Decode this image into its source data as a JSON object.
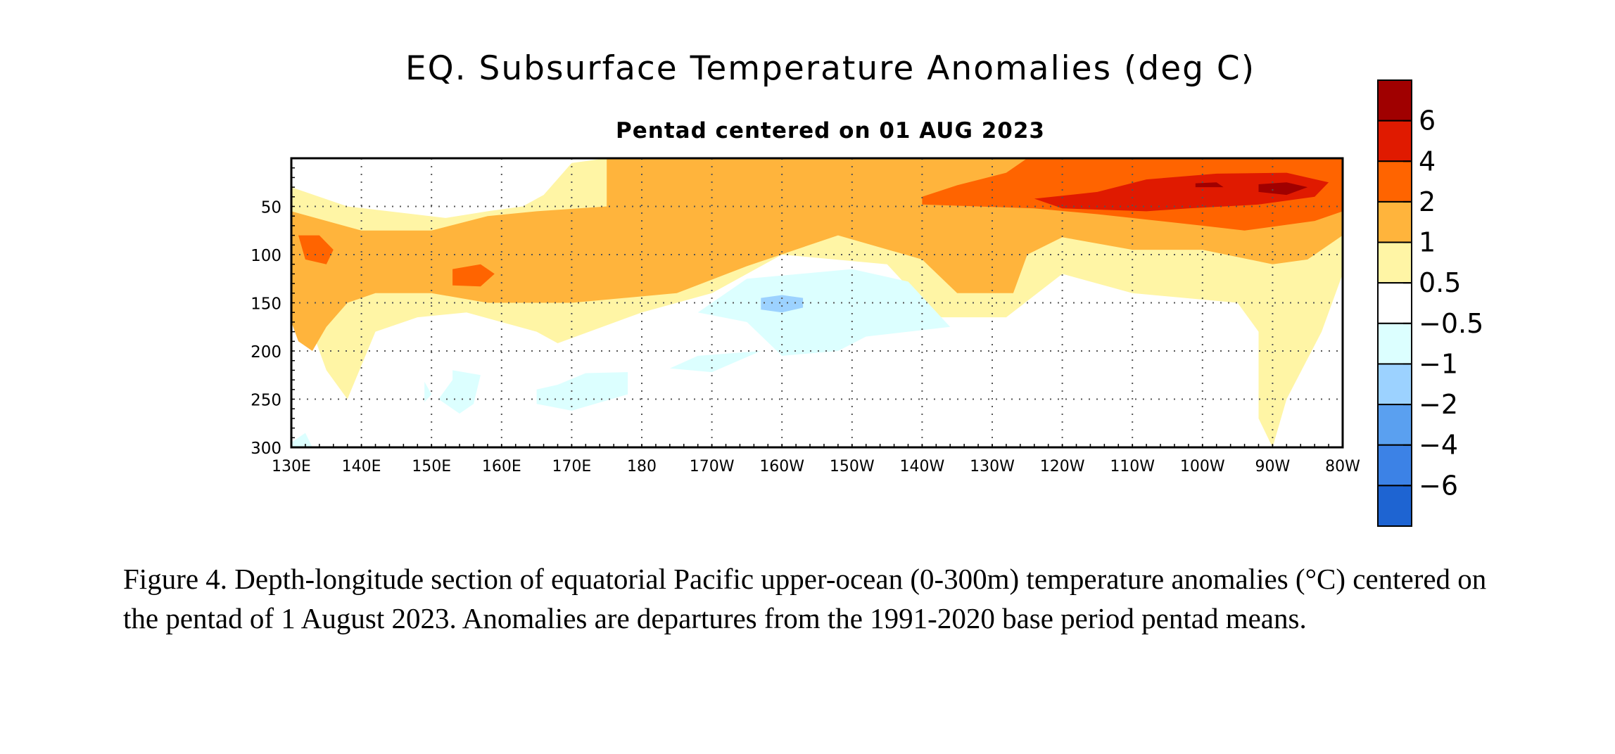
{
  "chart_data": {
    "type": "heatmap",
    "title": "EQ. Subsurface Temperature Anomalies (deg C)",
    "subtitle": "Pentad centered on 01 AUG 2023",
    "x_tick_labels": [
      "130E",
      "140E",
      "150E",
      "160E",
      "170E",
      "180",
      "170W",
      "160W",
      "150W",
      "140W",
      "130W",
      "120W",
      "110W",
      "100W",
      "90W",
      "80W"
    ],
    "x_ticks_deg_east": [
      130,
      140,
      150,
      160,
      170,
      180,
      190,
      200,
      210,
      220,
      230,
      240,
      250,
      260,
      270,
      280
    ],
    "xlim": [
      130,
      280
    ],
    "y_tick_labels": [
      "50",
      "100",
      "150",
      "200",
      "250",
      "300"
    ],
    "y_ticks": [
      50,
      100,
      150,
      200,
      250,
      300
    ],
    "ylim": [
      0,
      300
    ],
    "y_inverted": true,
    "grid": "dotted",
    "colorbar": {
      "placement": "right",
      "boundaries": [
        6,
        4,
        2,
        1,
        0.5,
        -0.5,
        -1,
        -2,
        -4,
        -6
      ],
      "labels": [
        "6",
        "4",
        "2",
        "1",
        "0.5",
        "−0.5",
        "−1",
        "−2",
        "−4",
        "−6"
      ],
      "colors": [
        "#a00000",
        "#e01a00",
        "#ff6400",
        "#ffb43c",
        "#fff5a5",
        "#ffffff",
        "#dcffff",
        "#9cd2ff",
        "#5aa0f0",
        "#3c82e6",
        "#1e64d2"
      ]
    },
    "anomaly_regions": [
      {
        "level": "0.5 to 1",
        "polygon_lon_depth": [
          [
            130,
            30
          ],
          [
            138,
            50
          ],
          [
            152,
            62
          ],
          [
            158,
            55
          ],
          [
            163,
            50
          ],
          [
            166,
            38
          ],
          [
            170,
            5
          ],
          [
            175,
            0
          ],
          [
            275,
            0
          ],
          [
            280,
            20
          ],
          [
            280,
            120
          ],
          [
            277,
            180
          ],
          [
            272,
            250
          ],
          [
            270,
            300
          ],
          [
            268,
            270
          ],
          [
            268,
            180
          ],
          [
            265,
            150
          ],
          [
            250,
            140
          ],
          [
            240,
            120
          ],
          [
            232,
            165
          ],
          [
            222,
            165
          ],
          [
            215,
            110
          ],
          [
            200,
            100
          ],
          [
            190,
            140
          ],
          [
            180,
            160
          ],
          [
            168,
            192
          ],
          [
            165,
            180
          ],
          [
            155,
            160
          ],
          [
            148,
            165
          ],
          [
            142,
            180
          ],
          [
            138,
            250
          ],
          [
            135,
            220
          ],
          [
            131,
            140
          ],
          [
            130,
            100
          ]
        ]
      },
      {
        "level": "1 to 2",
        "polygon_lon_depth": [
          [
            130,
            55
          ],
          [
            140,
            75
          ],
          [
            150,
            75
          ],
          [
            158,
            60
          ],
          [
            165,
            55
          ],
          [
            175,
            50
          ],
          [
            175,
            0
          ],
          [
            280,
            0
          ],
          [
            280,
            80
          ],
          [
            275,
            105
          ],
          [
            270,
            110
          ],
          [
            260,
            95
          ],
          [
            250,
            95
          ],
          [
            240,
            82
          ],
          [
            235,
            100
          ],
          [
            233,
            140
          ],
          [
            225,
            140
          ],
          [
            220,
            105
          ],
          [
            208,
            80
          ],
          [
            195,
            112
          ],
          [
            185,
            140
          ],
          [
            170,
            150
          ],
          [
            158,
            150
          ],
          [
            150,
            140
          ],
          [
            142,
            140
          ],
          [
            138,
            150
          ],
          [
            135,
            175
          ],
          [
            133,
            200
          ],
          [
            131,
            190
          ],
          [
            130,
            170
          ]
        ]
      },
      {
        "level": "2 to 4",
        "polygon_lon_depth": [
          [
            220,
            40
          ],
          [
            225,
            28
          ],
          [
            232,
            15
          ],
          [
            235,
            0
          ],
          [
            280,
            0
          ],
          [
            280,
            55
          ],
          [
            276,
            65
          ],
          [
            266,
            75
          ],
          [
            260,
            70
          ],
          [
            245,
            58
          ],
          [
            236,
            52
          ],
          [
            228,
            50
          ],
          [
            220,
            48
          ]
        ]
      },
      {
        "level": "2 to 4",
        "polygon_lon_depth": [
          [
            131,
            80
          ],
          [
            134,
            80
          ],
          [
            136,
            95
          ],
          [
            135,
            110
          ],
          [
            132,
            105
          ]
        ]
      },
      {
        "level": "2 to 4",
        "polygon_lon_depth": [
          [
            153,
            115
          ],
          [
            157,
            110
          ],
          [
            159,
            120
          ],
          [
            157,
            133
          ],
          [
            153,
            132
          ]
        ]
      },
      {
        "level": "4 to 6",
        "polygon_lon_depth": [
          [
            236,
            42
          ],
          [
            245,
            35
          ],
          [
            252,
            22
          ],
          [
            262,
            16
          ],
          [
            272,
            15
          ],
          [
            278,
            25
          ],
          [
            276,
            40
          ],
          [
            268,
            48
          ],
          [
            258,
            52
          ],
          [
            252,
            55
          ],
          [
            240,
            52
          ]
        ]
      },
      {
        "level": "above 6",
        "polygon_lon_depth": [
          [
            268,
            27
          ],
          [
            272,
            25
          ],
          [
            275,
            30
          ],
          [
            272,
            38
          ],
          [
            268,
            35
          ]
        ]
      },
      {
        "level": "above 6",
        "polygon_lon_depth": [
          [
            259,
            26
          ],
          [
            262,
            25
          ],
          [
            263,
            30
          ],
          [
            259,
            30
          ]
        ]
      },
      {
        "level": "-0.5 to -1",
        "polygon_lon_depth": [
          [
            195,
            125
          ],
          [
            210,
            115
          ],
          [
            218,
            128
          ],
          [
            224,
            175
          ],
          [
            212,
            185
          ],
          [
            208,
            200
          ],
          [
            200,
            205
          ],
          [
            195,
            170
          ],
          [
            188,
            160
          ]
        ]
      },
      {
        "level": "-0.5 to -1",
        "polygon_lon_depth": [
          [
            165,
            240
          ],
          [
            168,
            235
          ],
          [
            172,
            223
          ],
          [
            178,
            222
          ],
          [
            178,
            245
          ],
          [
            170,
            262
          ],
          [
            165,
            255
          ]
        ]
      },
      {
        "level": "-0.5 to -1",
        "polygon_lon_depth": [
          [
            153,
            220
          ],
          [
            157,
            225
          ],
          [
            156,
            255
          ],
          [
            154,
            265
          ],
          [
            151,
            250
          ],
          [
            153,
            230
          ]
        ]
      },
      {
        "level": "-0.5 to -1",
        "polygon_lon_depth": [
          [
            184,
            218
          ],
          [
            188,
            205
          ],
          [
            197,
            200
          ],
          [
            190,
            222
          ]
        ]
      },
      {
        "level": "-0.5 to -1",
        "polygon_lon_depth": [
          [
            130,
            295
          ],
          [
            132,
            285
          ],
          [
            133,
            300
          ],
          [
            130,
            300
          ]
        ]
      },
      {
        "level": "-0.5 to -1",
        "polygon_lon_depth": [
          [
            149,
            232
          ],
          [
            150,
            245
          ],
          [
            149,
            253
          ]
        ]
      },
      {
        "level": "-1 to -2",
        "polygon_lon_depth": [
          [
            197,
            145
          ],
          [
            200,
            142
          ],
          [
            203,
            145
          ],
          [
            203,
            155
          ],
          [
            200,
            160
          ],
          [
            197,
            157
          ]
        ]
      }
    ]
  },
  "caption": "Figure 4. Depth-longitude section of equatorial Pacific upper-ocean (0-300m) temperature anomalies (°C) centered on the pentad of 1 August 2023. Anomalies are departures from the 1991-2020 base period pentad means."
}
